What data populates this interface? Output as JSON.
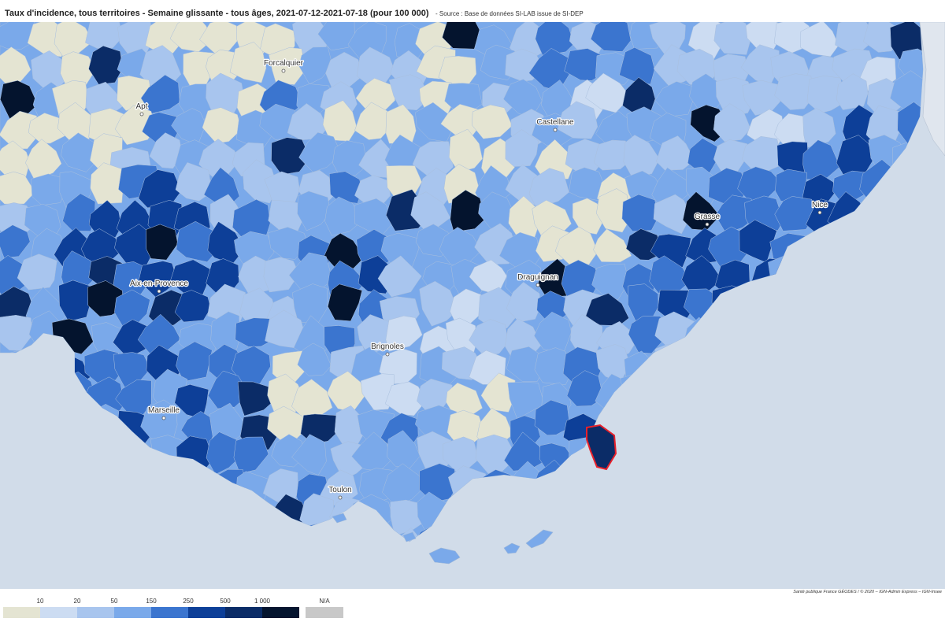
{
  "header": {
    "title": "Taux d'incidence, tous territoires - Semaine glissante - tous âges, 2021-07-12-2021-07-18 (pour 100 000)",
    "source": "- Source : Base de données SI-LAB issue de SI-DEP"
  },
  "map": {
    "sea_color": "#d1dce9",
    "selected_outline_color": "#e8202a",
    "cities": [
      {
        "name": "Forcalquier"
      },
      {
        "name": "Apt"
      },
      {
        "name": "Castellane"
      },
      {
        "name": "Grasse"
      },
      {
        "name": "Nice"
      },
      {
        "name": "Aix-en-Provence"
      },
      {
        "name": "Draguignan"
      },
      {
        "name": "Brignoles"
      },
      {
        "name": "Marseille"
      },
      {
        "name": "Toulon"
      }
    ]
  },
  "legend": {
    "ticks": [
      "10",
      "20",
      "50",
      "150",
      "250",
      "500",
      "1 000"
    ],
    "na_label": "N/A",
    "colors": [
      "#e4e4d2",
      "#ccdcf2",
      "#a8c5ee",
      "#7aa9ea",
      "#3b75cf",
      "#0d3f98",
      "#0b2c67",
      "#04142e"
    ],
    "na_color": "#c8c8c8"
  },
  "credits": "Santé publique France GÉODES / © 2020 – IGN-Admin Express – IGN-Insee"
}
